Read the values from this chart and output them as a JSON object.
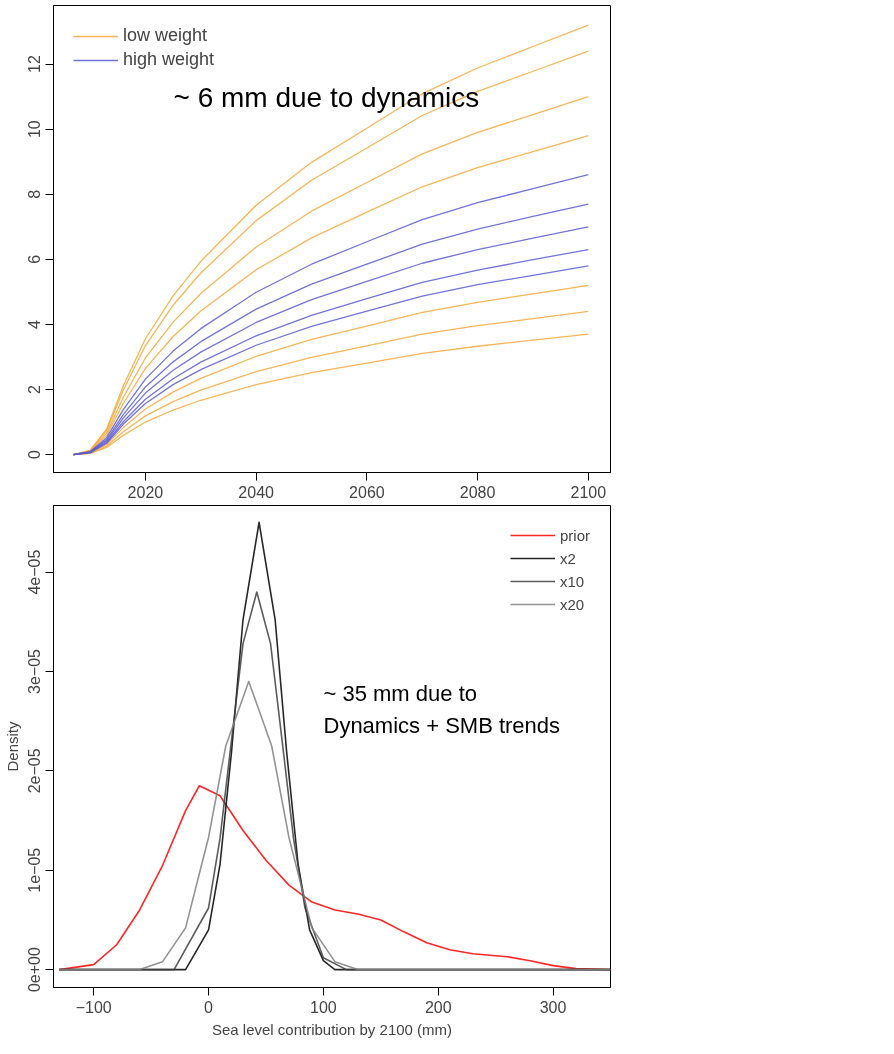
{
  "chart_data": [
    {
      "type": "line",
      "x": [
        2007,
        2010,
        2013,
        2016,
        2020,
        2025,
        2030,
        2040,
        2050,
        2060,
        2070,
        2080,
        2090,
        2100
      ],
      "xlim": [
        2003.4,
        2104
      ],
      "ylim": [
        -0.55,
        13.8
      ],
      "xticks": [
        2020,
        2040,
        2060,
        2080,
        2100
      ],
      "yticks": [
        0,
        2,
        4,
        6,
        8,
        10,
        12
      ],
      "grid": false,
      "legend": "top left",
      "line_style": "solid",
      "marker": "none",
      "annotations": [
        "~ 6 mm due to dynamics"
      ],
      "series": [
        {
          "name": "low weight",
          "color": "#f5a93a",
          "values": [
            0,
            0.13,
            0.79,
            2.11,
            3.56,
            4.88,
            5.94,
            7.66,
            8.98,
            10.03,
            11.09,
            11.88,
            12.54,
            13.2
          ]
        },
        {
          "color": "#f5a93a",
          "values": [
            0,
            0.12,
            0.74,
            1.98,
            3.35,
            4.59,
            5.58,
            7.19,
            8.43,
            9.42,
            10.42,
            11.16,
            11.78,
            12.4
          ]
        },
        {
          "color": "#f5a93a",
          "values": [
            0,
            0.11,
            0.66,
            1.76,
            2.97,
            4.07,
            4.95,
            6.38,
            7.48,
            8.36,
            9.24,
            9.9,
            10.45,
            11.0
          ]
        },
        {
          "color": "#f5a93a",
          "values": [
            0,
            0.1,
            0.59,
            1.57,
            2.65,
            3.63,
            4.41,
            5.68,
            6.66,
            7.45,
            8.23,
            8.82,
            9.31,
            9.8
          ]
        },
        {
          "color": "#f5a93a",
          "values": [
            0,
            0.05,
            0.31,
            0.83,
            1.4,
            1.92,
            2.34,
            3.02,
            3.54,
            3.95,
            4.37,
            4.68,
            4.94,
            5.2
          ]
        },
        {
          "color": "#f5a93a",
          "values": [
            0,
            0.04,
            0.26,
            0.7,
            1.19,
            1.63,
            1.98,
            2.55,
            2.99,
            3.34,
            3.7,
            3.96,
            4.18,
            4.4
          ]
        },
        {
          "color": "#f5a93a",
          "values": [
            0,
            0.04,
            0.22,
            0.59,
            1.0,
            1.37,
            1.67,
            2.15,
            2.52,
            2.81,
            3.11,
            3.33,
            3.52,
            3.7
          ]
        },
        {
          "name": "high weight",
          "color": "#5b5bd6",
          "values": [
            0,
            0.09,
            0.52,
            1.38,
            2.32,
            3.18,
            3.87,
            4.99,
            5.85,
            6.54,
            7.22,
            7.74,
            8.17,
            8.6
          ]
        },
        {
          "color": "#5b5bd6",
          "values": [
            0,
            0.08,
            0.46,
            1.23,
            2.08,
            2.85,
            3.47,
            4.47,
            5.24,
            5.85,
            6.47,
            6.93,
            7.32,
            7.7
          ]
        },
        {
          "color": "#5b5bd6",
          "values": [
            0,
            0.07,
            0.42,
            1.12,
            1.89,
            2.59,
            3.15,
            4.06,
            4.76,
            5.32,
            5.88,
            6.3,
            6.65,
            7.0
          ]
        },
        {
          "color": "#5b5bd6",
          "values": [
            0,
            0.06,
            0.38,
            1.01,
            1.7,
            2.33,
            2.84,
            3.65,
            4.28,
            4.79,
            5.29,
            5.67,
            5.99,
            6.3
          ]
        },
        {
          "color": "#5b5bd6",
          "values": [
            0,
            0.06,
            0.35,
            0.93,
            1.57,
            2.15,
            2.61,
            3.36,
            3.94,
            4.41,
            4.87,
            5.22,
            5.51,
            5.8
          ]
        }
      ]
    },
    {
      "type": "line",
      "xlabel": "Sea level contribution by 2100 (mm)",
      "ylabel": "Density",
      "xlim": [
        -135,
        350
      ],
      "ylim": [
        -1.8e-06,
        4.67e-05
      ],
      "xticks": [
        -100,
        0,
        100,
        200,
        300
      ],
      "yticks": [
        {
          "value": 0,
          "label": "0e+00"
        },
        {
          "value": 1e-05,
          "label": "1e−05"
        },
        {
          "value": 2e-05,
          "label": "2e−05"
        },
        {
          "value": 3e-05,
          "label": "3e−05"
        },
        {
          "value": 4e-05,
          "label": "4e−05"
        }
      ],
      "grid": false,
      "legend": "top right",
      "line_style": "solid",
      "marker": "none",
      "annotations": [
        "~ 35 mm due to\nDynamics + SMB trends"
      ],
      "series": [
        {
          "name": "prior",
          "color": "#ff0000",
          "x": [
            -130,
            -100,
            -80,
            -60,
            -40,
            -20,
            -8,
            10,
            30,
            50,
            70,
            90,
            110,
            130,
            150,
            170,
            190,
            210,
            230,
            260,
            280,
            300,
            320,
            350
          ],
          "values": [
            0,
            5e-07,
            2.5e-06,
            6e-06,
            1.05e-05,
            1.6e-05,
            1.85e-05,
            1.75e-05,
            1.4e-05,
            1.1e-05,
            8.5e-06,
            6.8e-06,
            6e-06,
            5.6e-06,
            5e-06,
            3.8e-06,
            2.7e-06,
            2e-06,
            1.6e-06,
            1.3e-06,
            9e-07,
            4e-07,
            1e-07,
            0
          ]
        },
        {
          "name": "x2",
          "color": "#000000",
          "x": [
            -130,
            -20,
            0,
            10,
            20,
            30,
            44,
            58,
            68,
            78,
            88,
            100,
            110,
            350
          ],
          "values": [
            0,
            0,
            4e-06,
            1.06e-05,
            2.19e-05,
            3.52e-05,
            4.5e-05,
            3.52e-05,
            2.19e-05,
            1.06e-05,
            4e-06,
            9e-07,
            0,
            0
          ]
        },
        {
          "name": "x10",
          "color": "#404040",
          "x": [
            -130,
            -30,
            0,
            10,
            20,
            30,
            42,
            54,
            64,
            74,
            84,
            100,
            120,
            350
          ],
          "values": [
            0,
            0,
            6.2e-06,
            1.32e-05,
            2.31e-05,
            3.28e-05,
            3.8e-05,
            3.28e-05,
            2.31e-05,
            1.32e-05,
            6.2e-06,
            1.2e-06,
            0,
            0
          ]
        },
        {
          "name": "x20",
          "color": "#808080",
          "x": [
            -130,
            -60,
            -40,
            -20,
            0,
            15,
            35,
            55,
            70,
            90,
            110,
            130,
            350
          ],
          "values": [
            0,
            0,
            8e-07,
            4.2e-06,
            1.33e-05,
            2.25e-05,
            2.9e-05,
            2.25e-05,
            1.33e-05,
            4.2e-06,
            8e-07,
            0,
            0
          ]
        }
      ]
    }
  ]
}
